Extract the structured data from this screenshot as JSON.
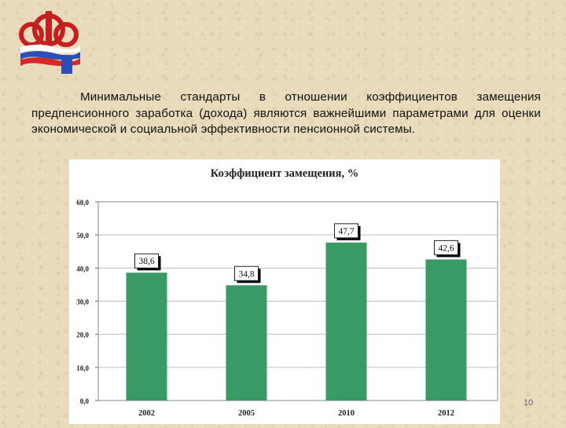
{
  "intro_text": "Минимальные стандарты в отношении коэффициентов замещения предпенсионного заработка (дохода) являются важнейшими параметрами для оценки экономической и социальной эффективности пенсионной системы.",
  "page_number": "10",
  "colors": {
    "bar": "#3a9a66",
    "background": "#e9dcbc"
  },
  "chart_data": {
    "type": "bar",
    "title": "Коэффициент замещения, %",
    "categories": [
      "2002",
      "2005",
      "2010",
      "2012"
    ],
    "values": [
      38.6,
      34.8,
      47.7,
      42.6
    ],
    "data_labels": [
      "38,6",
      "34,8",
      "47,7",
      "42,6"
    ],
    "ylim": [
      0,
      60
    ],
    "yticks": [
      "0,0",
      "10,0",
      "20,0",
      "30,0",
      "40,0",
      "50,0",
      "60,0"
    ],
    "grid": true,
    "xlabel": "",
    "ylabel": ""
  }
}
